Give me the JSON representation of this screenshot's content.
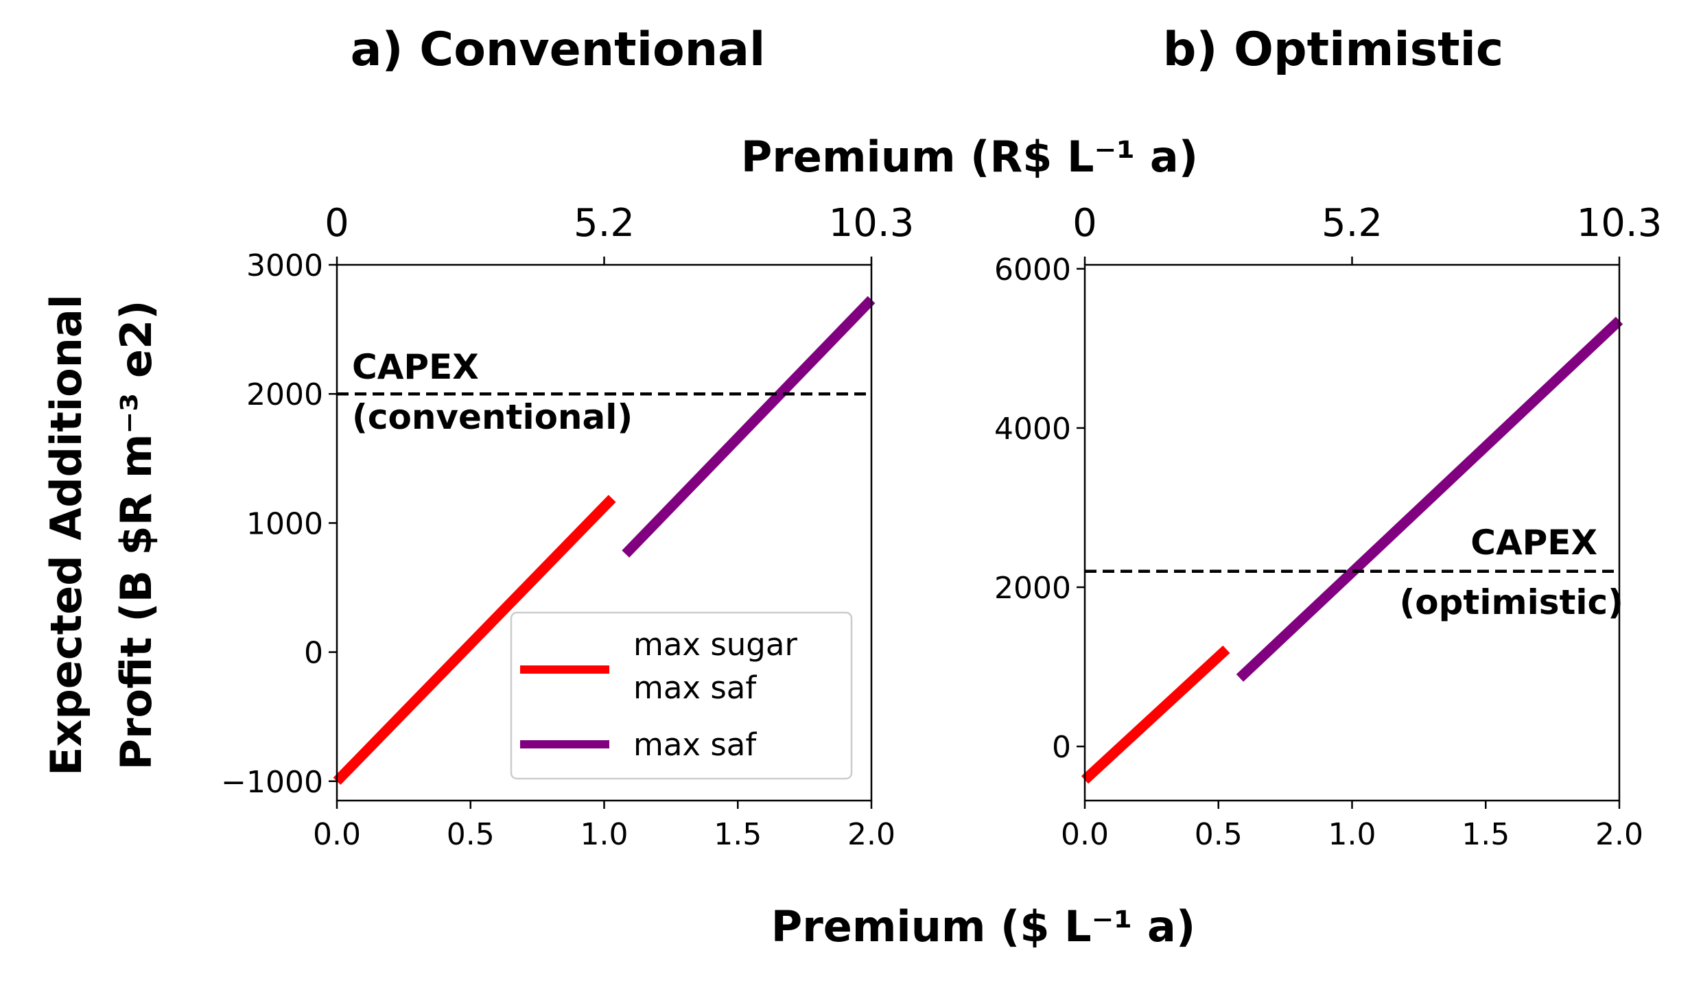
{
  "figure": {
    "shared_xlabel": "Premium ($ L⁻¹ a)",
    "top_xlabel": "Premium (R$ L⁻¹ a)",
    "ylabel_line1": "Expected Additional",
    "ylabel_line2": "Profit (B $R m⁻³ e2)"
  },
  "chart_data": [
    {
      "type": "line",
      "title": "a) Conventional",
      "xlabel": "Premium ($ L⁻¹ a)",
      "ylabel": "Expected Additional Profit (B $R m⁻³ e2)",
      "xlim": [
        0,
        2
      ],
      "ylim": [
        -1150,
        3000
      ],
      "x_ticks": [
        "0.0",
        "0.5",
        "1.0",
        "1.5",
        "2.0"
      ],
      "y_ticks": [
        "−1000",
        "0",
        "1000",
        "2000",
        "3000"
      ],
      "y_tick_values": [
        -1000,
        0,
        1000,
        2000,
        3000
      ],
      "top_axis_ticks": [
        "0",
        "5.2",
        "10.3"
      ],
      "top_axis_tick_values": [
        0,
        1.0,
        2.0
      ],
      "colors": {
        "max_sugar_max_saf": "#ff0000",
        "max_saf": "#800080",
        "capex": "#000000"
      },
      "series": [
        {
          "name": "max sugar\nmax saf",
          "color": "#ff0000",
          "x": [
            0.0,
            1.03
          ],
          "y": [
            -1000,
            1190
          ]
        },
        {
          "name": "max saf",
          "color": "#800080",
          "x": [
            1.08,
            2.0
          ],
          "y": [
            760,
            2730
          ]
        }
      ],
      "reference_line": {
        "y": 2000,
        "style": "dashed",
        "label_line1": "CAPEX",
        "label_line2": "(conventional)"
      },
      "legend": {
        "placement": "lower-right",
        "entries": [
          {
            "label_line1": "max sugar",
            "label_line2": "max saf",
            "color": "#ff0000"
          },
          {
            "label_line1": "max saf",
            "label_line2": "",
            "color": "#800080"
          }
        ]
      }
    },
    {
      "type": "line",
      "title": "b) Optimistic",
      "xlabel": "Premium ($ L⁻¹ a)",
      "xlim": [
        0,
        2
      ],
      "ylim": [
        -680,
        6050
      ],
      "x_ticks": [
        "0.0",
        "0.5",
        "1.0",
        "1.5",
        "2.0"
      ],
      "y_ticks": [
        "0",
        "2000",
        "4000",
        "6000"
      ],
      "y_tick_values": [
        0,
        2000,
        4000,
        6000
      ],
      "top_axis_ticks": [
        "0",
        "5.2",
        "10.3"
      ],
      "top_axis_tick_values": [
        0,
        1.0,
        2.0
      ],
      "colors": {
        "max_sugar_max_saf": "#ff0000",
        "max_saf": "#800080",
        "capex": "#000000"
      },
      "series": [
        {
          "name": "max sugar\nmax saf",
          "color": "#ff0000",
          "x": [
            0.0,
            0.53
          ],
          "y": [
            -420,
            1220
          ]
        },
        {
          "name": "max saf",
          "color": "#800080",
          "x": [
            0.58,
            2.0
          ],
          "y": [
            860,
            5350
          ]
        }
      ],
      "reference_line": {
        "y": 2200,
        "style": "dashed",
        "label_line1": "CAPEX",
        "label_line2": "(optimistic)"
      }
    }
  ]
}
